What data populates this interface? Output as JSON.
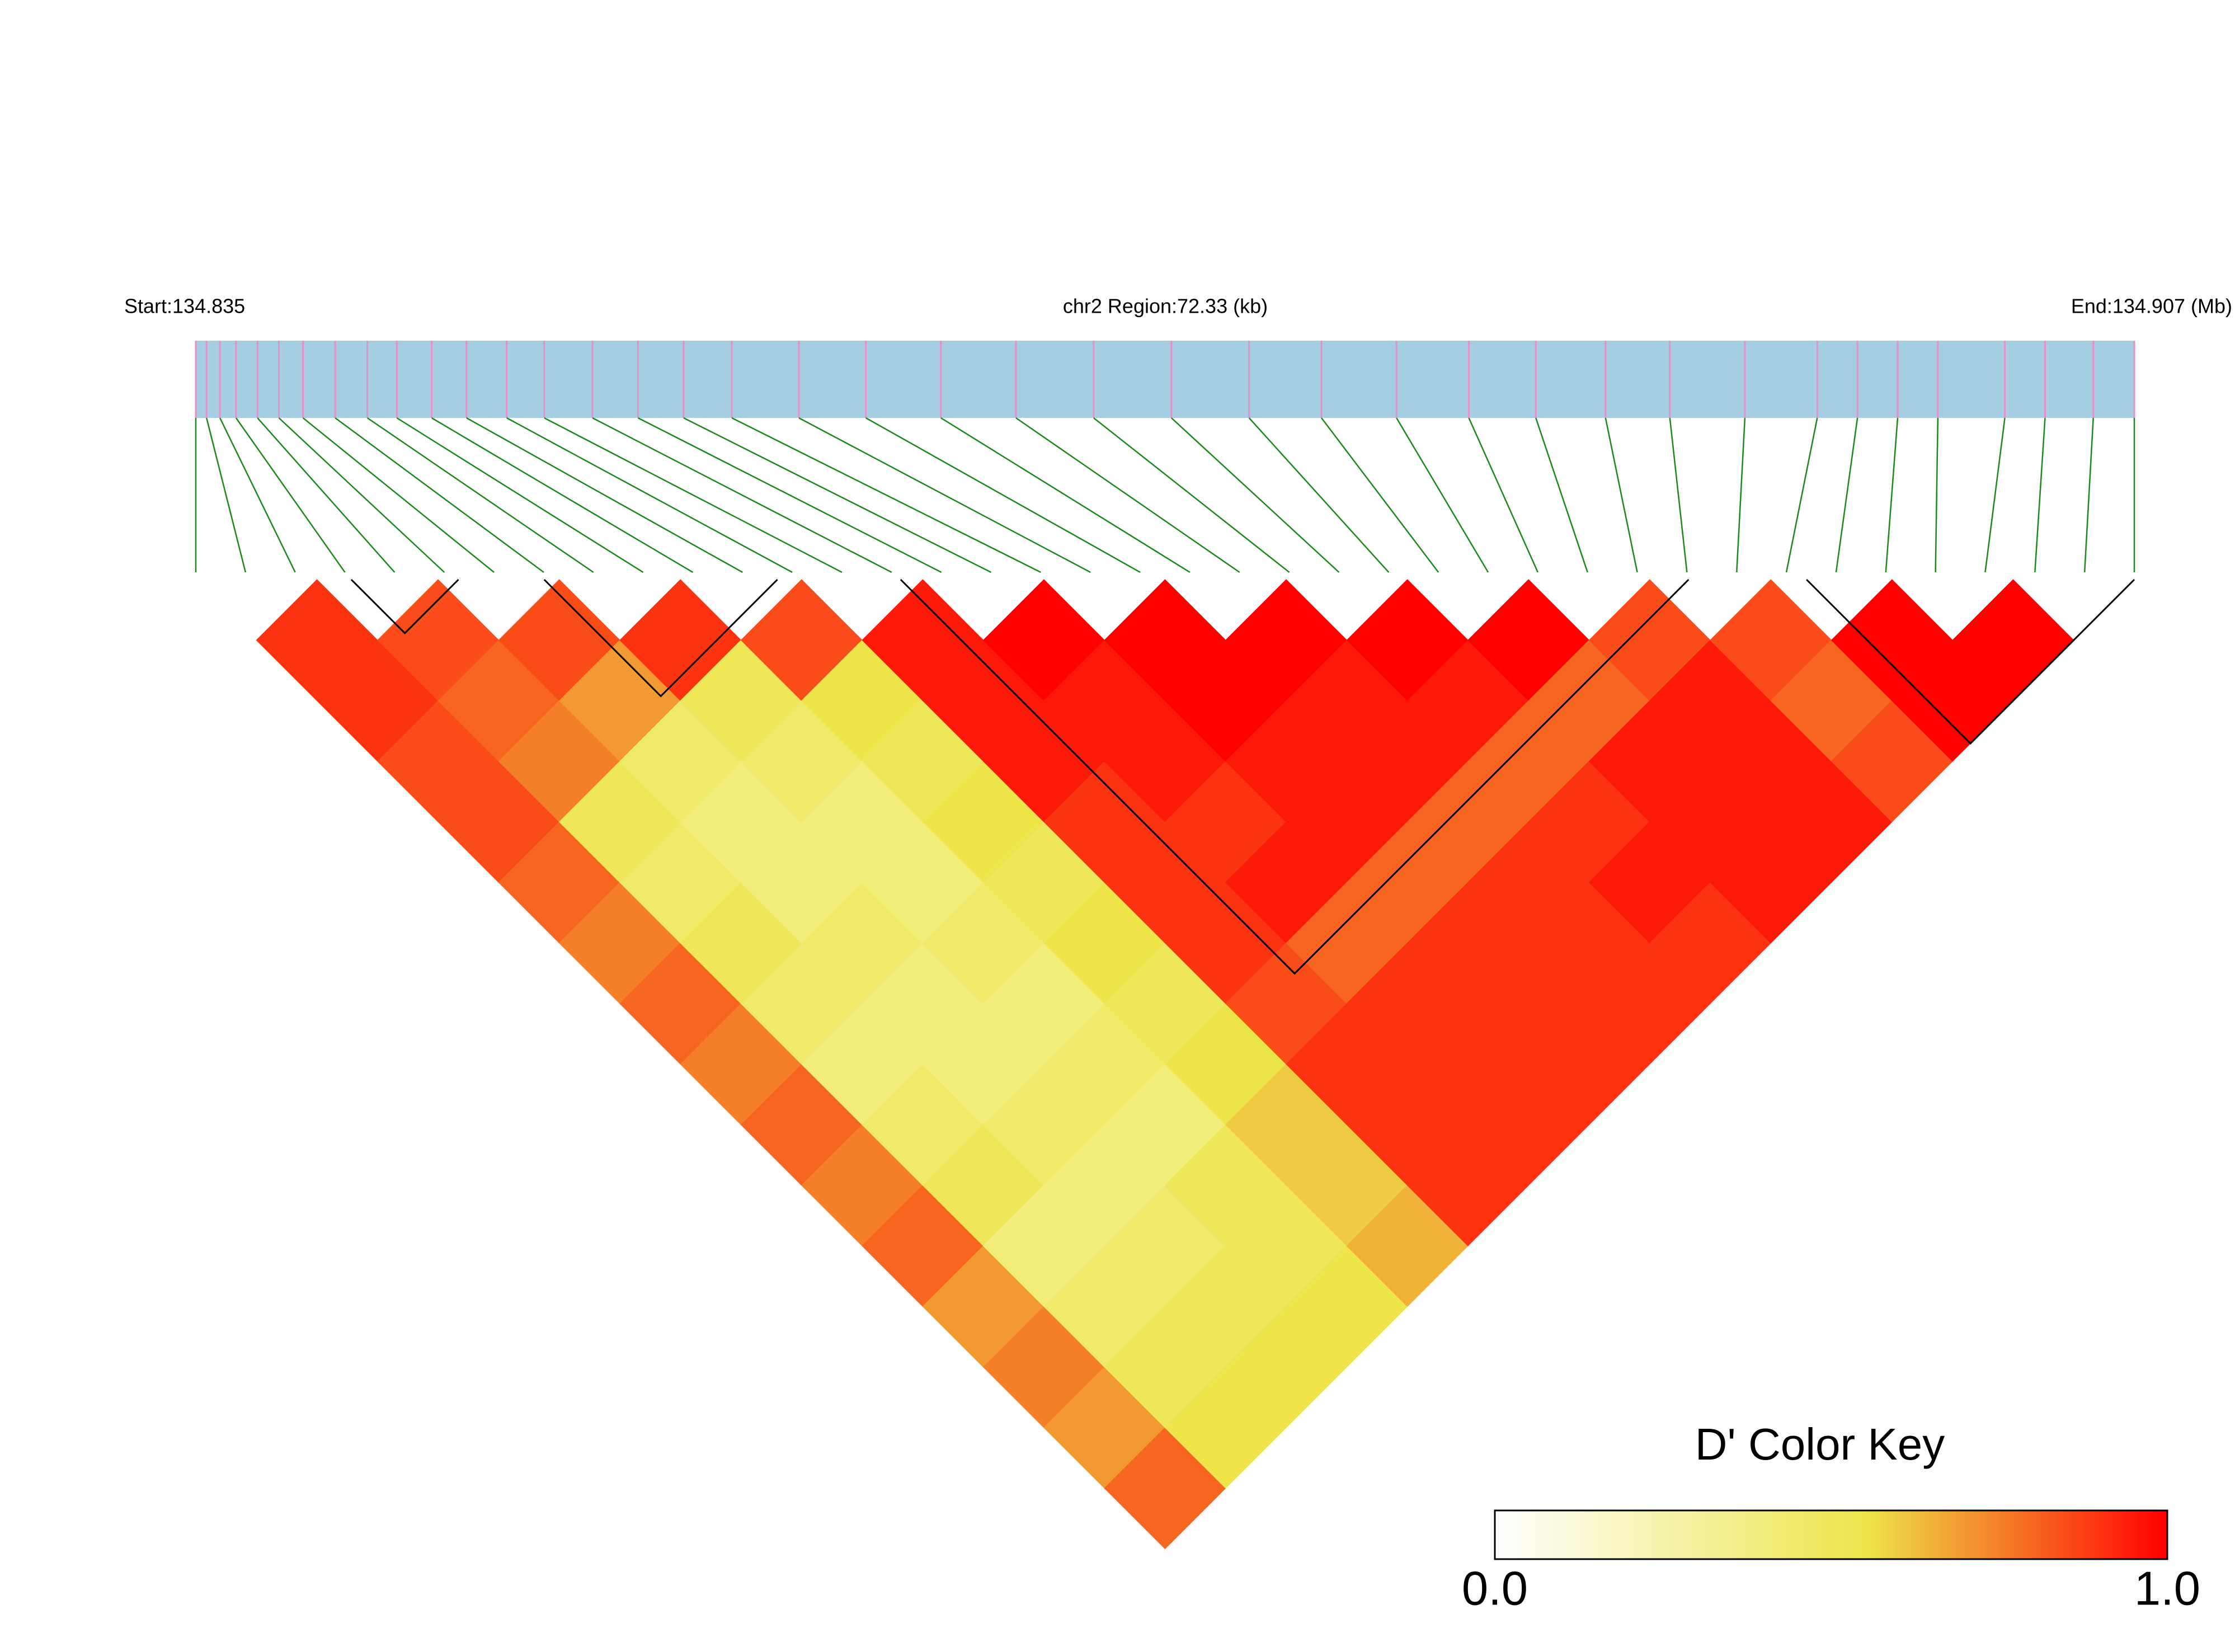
{
  "chart_data": {
    "type": "ld_heatmap",
    "start_label": "Start:134.835",
    "region_label": "chr2 Region:72.33 (kb)",
    "end_label": "End:134.907 (Mb)",
    "xlim": [
      0,
      72.33
    ],
    "snp_positions": [
      0,
      0.4,
      0.9,
      1.5,
      2.3,
      3.1,
      4.0,
      5.2,
      6.4,
      7.5,
      8.8,
      10.1,
      11.6,
      13.0,
      14.8,
      16.5,
      18.2,
      20.0,
      22.5,
      25.0,
      27.8,
      30.6,
      33.5,
      36.4,
      39.3,
      42.0,
      44.8,
      47.5,
      50.0,
      52.6,
      55.0,
      57.8,
      60.5,
      62.0,
      63.5,
      65.0,
      67.5,
      69.0,
      70.8,
      72.33
    ],
    "snp_color": "#e88fc8",
    "bar_color": "#a6cee3",
    "line_color": "#1a8a1a",
    "matrix": [
      [
        0.9,
        0.9,
        0.85,
        0.85,
        0.8,
        0.75,
        0.8,
        0.75,
        0.8,
        0.75,
        0.8,
        0.7,
        0.75,
        0.7,
        0.8
      ],
      [
        0.85,
        0.8,
        0.75,
        0.5,
        0.45,
        0.5,
        0.45,
        0.4,
        0.45,
        0.5,
        0.4,
        0.45,
        0.5,
        0.55
      ],
      [
        0.85,
        0.7,
        0.45,
        0.4,
        0.4,
        0.45,
        0.4,
        0.4,
        0.45,
        0.4,
        0.45,
        0.5,
        0.55
      ],
      [
        0.9,
        0.5,
        0.45,
        0.4,
        0.4,
        0.45,
        0.4,
        0.45,
        0.4,
        0.5,
        0.5,
        0.55
      ],
      [
        0.85,
        0.55,
        0.5,
        0.55,
        0.5,
        0.55,
        0.5,
        0.55,
        0.6,
        0.6,
        0.65
      ],
      [
        0.95,
        0.95,
        0.95,
        0.9,
        0.9,
        0.9,
        0.85,
        0.9,
        0.9,
        0.9
      ],
      [
        1,
        0.95,
        0.95,
        0.9,
        0.95,
        0.8,
        0.9,
        0.9,
        0.9
      ],
      [
        1,
        1,
        0.95,
        0.95,
        0.8,
        0.9,
        0.9,
        0.9
      ],
      [
        1,
        0.95,
        0.95,
        0.8,
        0.9,
        0.9,
        0.9
      ],
      [
        1,
        0.95,
        0.8,
        0.9,
        0.95,
        0.9
      ],
      [
        1,
        0.8,
        0.95,
        0.95,
        0.95
      ],
      [
        0.85,
        0.95,
        0.95,
        0.95
      ],
      [
        0.85,
        0.8,
        0.85
      ],
      [
        1,
        1
      ],
      [
        1
      ]
    ],
    "blocks": [
      [
        5.8,
        9.8
      ],
      [
        13.0,
        21.7
      ],
      [
        26.3,
        55.7
      ],
      [
        60.1,
        72.33
      ]
    ],
    "color_key_title": "D' Color Key",
    "color_stops": [
      {
        "value": 0,
        "color": "#ffffff"
      },
      {
        "value": 0.55,
        "color": "#ede54a"
      },
      {
        "value": 1,
        "color": "#ff0000"
      }
    ],
    "key_ticks": [
      {
        "value": 0,
        "label": "0.0"
      },
      {
        "value": 1,
        "label": "1.0"
      }
    ]
  }
}
